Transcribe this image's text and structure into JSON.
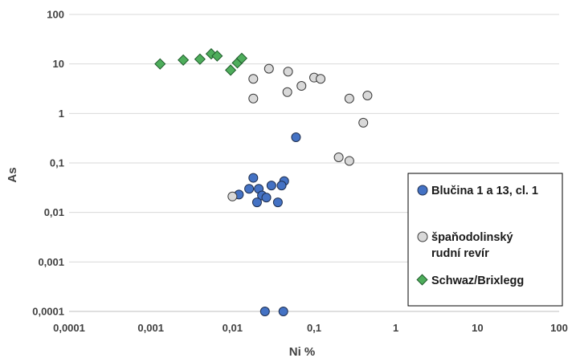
{
  "chart_data": {
    "type": "scatter",
    "title": "",
    "xlabel": "Ni %",
    "ylabel": "As",
    "x_scale": "log",
    "y_scale": "log",
    "xlim": [
      0.0001,
      100
    ],
    "ylim": [
      0.0001,
      100
    ],
    "x_ticks": [
      "0,0001",
      "0,001",
      "0,01",
      "0,1",
      "1",
      "10",
      "100"
    ],
    "y_ticks": [
      "0,0001",
      "0,001",
      "0,01",
      "0,1",
      "1",
      "10",
      "100"
    ],
    "grid": "horizontal",
    "legend_position": "right",
    "series": [
      {
        "name": "Blučina 1 a 13, cl. 1",
        "marker": "circle",
        "color": "#4472c4",
        "points": [
          [
            0.018,
            0.05
          ],
          [
            0.016,
            0.03
          ],
          [
            0.021,
            0.03
          ],
          [
            0.023,
            0.022
          ],
          [
            0.012,
            0.023
          ],
          [
            0.02,
            0.016
          ],
          [
            0.03,
            0.035
          ],
          [
            0.026,
            0.02
          ],
          [
            0.036,
            0.016
          ],
          [
            0.043,
            0.043
          ],
          [
            0.04,
            0.035
          ],
          [
            0.06,
            0.33
          ],
          [
            0.025,
            0.0001
          ],
          [
            0.042,
            0.0001
          ]
        ]
      },
      {
        "name": "špaňodolinský rudní revír",
        "marker": "circle",
        "color": "#d9d9d9",
        "points": [
          [
            0.01,
            0.021
          ],
          [
            0.018,
            5.0
          ],
          [
            0.018,
            2.0
          ],
          [
            0.028,
            8.0
          ],
          [
            0.048,
            7.0
          ],
          [
            0.047,
            2.7
          ],
          [
            0.07,
            3.6
          ],
          [
            0.1,
            5.3
          ],
          [
            0.12,
            5.0
          ],
          [
            0.27,
            2.0
          ],
          [
            0.45,
            2.3
          ],
          [
            0.4,
            0.65
          ],
          [
            0.2,
            0.13
          ],
          [
            0.27,
            0.11
          ]
        ]
      },
      {
        "name": "Schwaz/Brixlegg",
        "marker": "diamond",
        "color": "#4ead5b",
        "points": [
          [
            0.0013,
            10.0
          ],
          [
            0.0025,
            12.0
          ],
          [
            0.004,
            12.5
          ],
          [
            0.0055,
            16.0
          ],
          [
            0.0065,
            14.5
          ],
          [
            0.0095,
            7.5
          ],
          [
            0.0115,
            10.5
          ],
          [
            0.013,
            13.0
          ]
        ]
      }
    ]
  }
}
